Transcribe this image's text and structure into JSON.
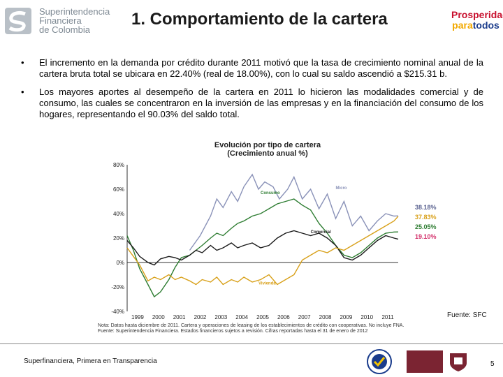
{
  "header": {
    "logo_text": [
      "Superintendencia",
      "Financiera",
      "de Colombia"
    ],
    "title": "1. Comportamiento de la cartera",
    "slogan_line1": "Prosperidad",
    "slogan_line2a": "para",
    "slogan_line2b": "todos"
  },
  "bullets": [
    {
      "text": "El incremento en la demanda por crédito durante 2011 motivó que la tasa de crecimiento nominal anual de la cartera bruta total se ubicara en 22.40% (real de 18.00%), con lo cual su saldo ascendió a $215.31 b."
    },
    {
      "text": "Los mayores aportes al desempeño de la cartera en 2011 lo hicieron las modalidades comercial y de consumo, las cuales se concentraron en la inversión de las empresas y en la financiación del consumo de los hogares, representando el 90.03% del saldo total."
    }
  ],
  "bullet_symbol": "•",
  "chart_data": {
    "type": "line",
    "title": "Evolución por tipo de cartera",
    "subtitle": "(Crecimiento anual %)",
    "xlabel": "",
    "ylabel": "",
    "ylim": [
      -40,
      80
    ],
    "yticks": [
      "80%",
      "60%",
      "40%",
      "20%",
      "0%",
      "-20%",
      "-40%"
    ],
    "ytick_values": [
      80,
      60,
      40,
      20,
      0,
      -20,
      -40
    ],
    "xlim": [
      1999,
      2012
    ],
    "xticks": [
      "1999",
      "2000",
      "2001",
      "2002",
      "2003",
      "2004",
      "2005",
      "2006",
      "2007",
      "2008",
      "2009",
      "2010",
      "2011"
    ],
    "series": [
      {
        "name": "Micro",
        "color": "#8a92b8",
        "x": [
          2002.0,
          2002.5,
          2003.0,
          2003.3,
          2003.6,
          2004.0,
          2004.3,
          2004.6,
          2005.0,
          2005.3,
          2005.6,
          2006.0,
          2006.3,
          2006.7,
          2007.0,
          2007.4,
          2007.8,
          2008.2,
          2008.6,
          2009.0,
          2009.4,
          2009.8,
          2010.2,
          2010.6,
          2011.0,
          2011.4,
          2011.8,
          2012.0
        ],
        "y": [
          10,
          22,
          38,
          52,
          45,
          58,
          50,
          62,
          72,
          60,
          66,
          62,
          52,
          60,
          70,
          52,
          60,
          44,
          56,
          36,
          50,
          30,
          38,
          26,
          34,
          40,
          38,
          38.18
        ]
      },
      {
        "name": "Consumo",
        "color": "#2e7d32",
        "x": [
          1999.0,
          1999.3,
          1999.6,
          2000.0,
          2000.3,
          2000.6,
          2001.0,
          2001.3,
          2001.6,
          2002.0,
          2002.3,
          2002.6,
          2003.0,
          2003.3,
          2003.6,
          2004.0,
          2004.3,
          2004.6,
          2005.0,
          2005.4,
          2005.8,
          2006.2,
          2006.6,
          2007.0,
          2007.4,
          2007.8,
          2008.2,
          2008.6,
          2009.0,
          2009.4,
          2009.8,
          2010.2,
          2010.6,
          2011.0,
          2011.4,
          2011.8,
          2012.0
        ],
        "y": [
          22,
          10,
          -5,
          -18,
          -28,
          -24,
          -14,
          -4,
          4,
          6,
          10,
          14,
          20,
          24,
          22,
          28,
          32,
          34,
          38,
          40,
          44,
          48,
          50,
          52,
          47,
          43,
          32,
          24,
          14,
          6,
          4,
          8,
          14,
          20,
          24,
          25,
          25.05
        ]
      },
      {
        "name": "Comercial",
        "color": "#1a1a1a",
        "x": [
          1999.0,
          1999.3,
          1999.6,
          2000.0,
          2000.3,
          2000.6,
          2001.0,
          2001.3,
          2001.6,
          2002.0,
          2002.3,
          2002.6,
          2003.0,
          2003.3,
          2003.6,
          2004.0,
          2004.3,
          2004.6,
          2005.0,
          2005.4,
          2005.8,
          2006.2,
          2006.6,
          2007.0,
          2007.4,
          2007.8,
          2008.2,
          2008.6,
          2009.0,
          2009.4,
          2009.8,
          2010.2,
          2010.6,
          2011.0,
          2011.4,
          2011.8,
          2012.0
        ],
        "y": [
          18,
          12,
          5,
          0,
          -2,
          3,
          5,
          4,
          2,
          6,
          10,
          8,
          14,
          10,
          12,
          16,
          12,
          14,
          16,
          12,
          14,
          20,
          24,
          26,
          24,
          22,
          24,
          20,
          14,
          4,
          2,
          6,
          12,
          18,
          22,
          20,
          19.1
        ]
      },
      {
        "name": "Vivienda",
        "color": "#d8a019",
        "x": [
          1999.0,
          1999.3,
          1999.6,
          2000.0,
          2000.3,
          2000.6,
          2001.0,
          2001.3,
          2001.6,
          2002.0,
          2002.3,
          2002.6,
          2003.0,
          2003.3,
          2003.6,
          2004.0,
          2004.3,
          2004.6,
          2005.0,
          2005.4,
          2005.8,
          2006.2,
          2006.6,
          2007.0,
          2007.4,
          2007.8,
          2008.2,
          2008.6,
          2009.0,
          2009.4,
          2009.8,
          2010.2,
          2010.6,
          2011.0,
          2011.4,
          2011.8,
          2012.0
        ],
        "y": [
          12,
          5,
          -2,
          -15,
          -12,
          -14,
          -10,
          -14,
          -12,
          -15,
          -18,
          -14,
          -16,
          -12,
          -18,
          -14,
          -16,
          -12,
          -16,
          -14,
          -10,
          -18,
          -14,
          -10,
          2,
          6,
          10,
          8,
          12,
          10,
          14,
          18,
          22,
          26,
          30,
          34,
          37.83
        ]
      }
    ],
    "annotations": [
      {
        "series": "Micro",
        "label": "38.18%",
        "color": "#5a6290"
      },
      {
        "series": "Vivienda",
        "label": "37.83%",
        "color": "#d8a019"
      },
      {
        "series": "Consumo",
        "label": "25.05%",
        "color": "#2e7d32"
      },
      {
        "series": "Comercial",
        "label": "19.10%",
        "color": "#d32f6a"
      }
    ]
  },
  "source": "Fuente: SFC",
  "note": [
    "Nota: Datos hasta diciembre de 2011. Cartera y operaciones de leasing de los establecimientos de crédito con cooperativas. No incluye FNA.",
    "Fuente: Superintendencia Financiera. Estados financieros sujetos a revisión. Cifras reportadas hasta el 31 de enero de 2012"
  ],
  "footer": {
    "text": "Superfinanciera, Primera en Transparencia",
    "page": "5"
  }
}
